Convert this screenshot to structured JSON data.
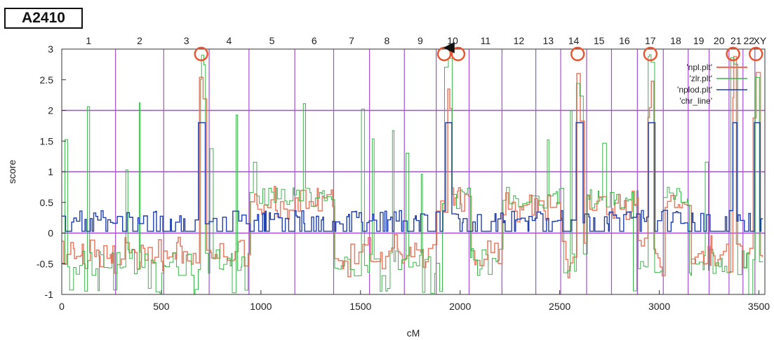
{
  "panel_label": "A2410",
  "chart_data": {
    "type": "line",
    "xlabel": "cM",
    "ylabel": "score",
    "xlim": [
      0,
      3530
    ],
    "ylim": [
      -1,
      3
    ],
    "x_ticks": [
      0,
      500,
      1000,
      1500,
      2000,
      2500,
      3000,
      3500
    ],
    "y_ticks": [
      -1,
      -0.5,
      0,
      0.5,
      1,
      1.5,
      2,
      2.5,
      3
    ],
    "grid": false,
    "legend_placement": "top-right",
    "horizontal_lines": [
      0,
      1,
      2
    ],
    "chromosomes": [
      {
        "label": "1",
        "start": 0,
        "end": 270
      },
      {
        "label": "2",
        "start": 270,
        "end": 512
      },
      {
        "label": "3",
        "start": 512,
        "end": 740
      },
      {
        "label": "4",
        "start": 740,
        "end": 940
      },
      {
        "label": "5",
        "start": 940,
        "end": 1170
      },
      {
        "label": "6",
        "start": 1170,
        "end": 1365
      },
      {
        "label": "7",
        "start": 1365,
        "end": 1545
      },
      {
        "label": "8",
        "start": 1545,
        "end": 1720
      },
      {
        "label": "9",
        "start": 1720,
        "end": 1880
      },
      {
        "label": "10",
        "start": 1880,
        "end": 2045
      },
      {
        "label": "11",
        "start": 2045,
        "end": 2210
      },
      {
        "label": "12",
        "start": 2210,
        "end": 2380
      },
      {
        "label": "13",
        "start": 2380,
        "end": 2505
      },
      {
        "label": "14",
        "start": 2505,
        "end": 2635
      },
      {
        "label": "15",
        "start": 2635,
        "end": 2760
      },
      {
        "label": "16",
        "start": 2760,
        "end": 2890
      },
      {
        "label": "17",
        "start": 2890,
        "end": 3020
      },
      {
        "label": "18",
        "start": 3020,
        "end": 3145
      },
      {
        "label": "19",
        "start": 3145,
        "end": 3250
      },
      {
        "label": "20",
        "start": 3250,
        "end": 3350
      },
      {
        "label": "21",
        "start": 3350,
        "end": 3420
      },
      {
        "label": "22",
        "start": 3420,
        "end": 3480
      },
      {
        "label": "XY",
        "start": 3480,
        "end": 3530
      }
    ],
    "series": [
      {
        "name": "'npl.plt'",
        "color": "#e8735a"
      },
      {
        "name": "'zlr.plt'",
        "color": "#3cb44b"
      },
      {
        "name": "'nplod.plt'",
        "color": "#1f3fae"
      },
      {
        "name": "'chr_line'",
        "color": "#a64fd1"
      }
    ],
    "peaks": [
      {
        "x": 700,
        "score": 1.8
      },
      {
        "x": 1935,
        "score": 1.8
      },
      {
        "x": 2590,
        "score": 1.8
      },
      {
        "x": 2955,
        "score": 1.8
      },
      {
        "x": 3370,
        "score": 1.8
      },
      {
        "x": 3485,
        "score": 1.8
      }
    ],
    "highlight_circles_x": [
      700,
      1920,
      1990,
      2590,
      2955,
      3370,
      3485
    ],
    "arrow_x": 1965,
    "chr_line_color": "#a64fd1",
    "highlight_color": "#e8542f"
  }
}
